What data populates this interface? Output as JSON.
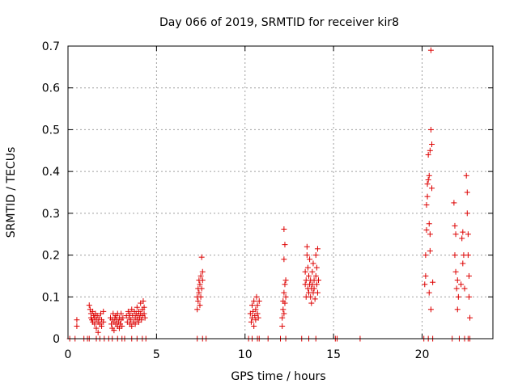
{
  "chart_data": {
    "type": "scatter",
    "title": "Day 066 of 2019, SRMTID for receiver kir8",
    "xlabel": "GPS time / hours",
    "ylabel": "SRMTID / TECUs",
    "xlim": [
      0,
      24
    ],
    "ylim": [
      0,
      0.7
    ],
    "xticks": [
      0,
      5,
      10,
      15,
      20
    ],
    "yticks": [
      0,
      0.1,
      0.2,
      0.3,
      0.4,
      0.5,
      0.6,
      0.7
    ],
    "grid": true,
    "marker": "+",
    "color": "#dd0000",
    "series": [
      {
        "name": "SRMTID",
        "points": [
          [
            0.1,
            0.0
          ],
          [
            0.4,
            0.0
          ],
          [
            0.5,
            0.03
          ],
          [
            0.5,
            0.045
          ],
          [
            0.9,
            0.0
          ],
          [
            1.1,
            0.0
          ],
          [
            1.2,
            0.0
          ],
          [
            1.2,
            0.08
          ],
          [
            1.25,
            0.07
          ],
          [
            1.3,
            0.06
          ],
          [
            1.3,
            0.05
          ],
          [
            1.35,
            0.045
          ],
          [
            1.4,
            0.04
          ],
          [
            1.4,
            0.065
          ],
          [
            1.45,
            0.055
          ],
          [
            1.5,
            0.05
          ],
          [
            1.5,
            0.035
          ],
          [
            1.55,
            0.06
          ],
          [
            1.6,
            0.045
          ],
          [
            1.6,
            0.025
          ],
          [
            1.65,
            0.055
          ],
          [
            1.7,
            0.04
          ],
          [
            1.7,
            0.015
          ],
          [
            1.75,
            0.05
          ],
          [
            1.8,
            0.035
          ],
          [
            1.85,
            0.06
          ],
          [
            1.9,
            0.045
          ],
          [
            1.9,
            0.03
          ],
          [
            2.0,
            0.065
          ],
          [
            2.0,
            0.04
          ],
          [
            1.6,
            0.0
          ],
          [
            1.8,
            0.0
          ],
          [
            2.05,
            0.0
          ],
          [
            2.3,
            0.0
          ],
          [
            2.4,
            0.05
          ],
          [
            2.45,
            0.035
          ],
          [
            2.5,
            0.045
          ],
          [
            2.5,
            0.025
          ],
          [
            2.55,
            0.06
          ],
          [
            2.6,
            0.04
          ],
          [
            2.6,
            0.02
          ],
          [
            2.65,
            0.05
          ],
          [
            2.7,
            0.035
          ],
          [
            2.7,
            0.055
          ],
          [
            2.75,
            0.045
          ],
          [
            2.8,
            0.03
          ],
          [
            2.8,
            0.06
          ],
          [
            2.85,
            0.04
          ],
          [
            2.9,
            0.05
          ],
          [
            2.9,
            0.025
          ],
          [
            2.95,
            0.035
          ],
          [
            3.0,
            0.045
          ],
          [
            3.0,
            0.06
          ],
          [
            3.05,
            0.03
          ],
          [
            3.1,
            0.05
          ],
          [
            2.5,
            0.0
          ],
          [
            2.8,
            0.0
          ],
          [
            3.05,
            0.0
          ],
          [
            3.2,
            0.0
          ],
          [
            3.3,
            0.055
          ],
          [
            3.35,
            0.04
          ],
          [
            3.4,
            0.065
          ],
          [
            3.45,
            0.05
          ],
          [
            3.5,
            0.035
          ],
          [
            3.5,
            0.06
          ],
          [
            3.55,
            0.045
          ],
          [
            3.6,
            0.07
          ],
          [
            3.6,
            0.03
          ],
          [
            3.65,
            0.055
          ],
          [
            3.7,
            0.04
          ],
          [
            3.75,
            0.065
          ],
          [
            3.8,
            0.05
          ],
          [
            3.8,
            0.035
          ],
          [
            3.85,
            0.06
          ],
          [
            3.9,
            0.045
          ],
          [
            3.9,
            0.075
          ],
          [
            3.95,
            0.055
          ],
          [
            4.0,
            0.04
          ],
          [
            4.0,
            0.065
          ],
          [
            4.05,
            0.05
          ],
          [
            4.1,
            0.085
          ],
          [
            4.1,
            0.06
          ],
          [
            4.15,
            0.045
          ],
          [
            4.2,
            0.07
          ],
          [
            4.2,
            0.055
          ],
          [
            4.25,
            0.09
          ],
          [
            4.3,
            0.06
          ],
          [
            4.3,
            0.075
          ],
          [
            4.35,
            0.05
          ],
          [
            3.6,
            0.0
          ],
          [
            3.9,
            0.0
          ],
          [
            4.2,
            0.0
          ],
          [
            4.4,
            0.0
          ],
          [
            7.3,
            0.07
          ],
          [
            7.3,
            0.1
          ],
          [
            7.35,
            0.12
          ],
          [
            7.35,
            0.09
          ],
          [
            7.4,
            0.14
          ],
          [
            7.4,
            0.11
          ],
          [
            7.45,
            0.08
          ],
          [
            7.45,
            0.13
          ],
          [
            7.5,
            0.15
          ],
          [
            7.5,
            0.1
          ],
          [
            7.55,
            0.12
          ],
          [
            7.55,
            0.195
          ],
          [
            7.6,
            0.16
          ],
          [
            7.6,
            0.14
          ],
          [
            7.3,
            0.0
          ],
          [
            7.6,
            0.0
          ],
          [
            7.8,
            0.0
          ],
          [
            10.2,
            0.0
          ],
          [
            10.3,
            0.06
          ],
          [
            10.35,
            0.04
          ],
          [
            10.4,
            0.08
          ],
          [
            10.4,
            0.05
          ],
          [
            10.45,
            0.065
          ],
          [
            10.5,
            0.03
          ],
          [
            10.5,
            0.09
          ],
          [
            10.55,
            0.055
          ],
          [
            10.6,
            0.07
          ],
          [
            10.6,
            0.045
          ],
          [
            10.65,
            0.1
          ],
          [
            10.7,
            0.06
          ],
          [
            10.7,
            0.08
          ],
          [
            10.75,
            0.05
          ],
          [
            10.8,
            0.09
          ],
          [
            10.4,
            0.0
          ],
          [
            10.7,
            0.0
          ],
          [
            10.8,
            0.0
          ],
          [
            11.3,
            0.0
          ],
          [
            12.0,
            0.0
          ],
          [
            12.1,
            0.03
          ],
          [
            12.1,
            0.05
          ],
          [
            12.15,
            0.09
          ],
          [
            12.15,
            0.07
          ],
          [
            12.2,
            0.11
          ],
          [
            12.2,
            0.06
          ],
          [
            12.25,
            0.13
          ],
          [
            12.25,
            0.085
          ],
          [
            12.2,
            0.19
          ],
          [
            12.25,
            0.225
          ],
          [
            12.2,
            0.262
          ],
          [
            12.3,
            0.14
          ],
          [
            12.3,
            0.1
          ],
          [
            12.3,
            0.0
          ],
          [
            13.2,
            0.0
          ],
          [
            13.4,
            0.13
          ],
          [
            13.4,
            0.16
          ],
          [
            13.45,
            0.1
          ],
          [
            13.45,
            0.14
          ],
          [
            13.5,
            0.2
          ],
          [
            13.5,
            0.22
          ],
          [
            13.55,
            0.12
          ],
          [
            13.55,
            0.17
          ],
          [
            13.6,
            0.15
          ],
          [
            13.6,
            0.11
          ],
          [
            13.65,
            0.13
          ],
          [
            13.65,
            0.19
          ],
          [
            13.7,
            0.1
          ],
          [
            13.7,
            0.14
          ],
          [
            13.75,
            0.12
          ],
          [
            13.75,
            0.085
          ],
          [
            13.8,
            0.16
          ],
          [
            13.8,
            0.13
          ],
          [
            13.85,
            0.11
          ],
          [
            13.85,
            0.18
          ],
          [
            13.9,
            0.14
          ],
          [
            13.9,
            0.12
          ],
          [
            13.95,
            0.095
          ],
          [
            14.0,
            0.15
          ],
          [
            14.0,
            0.2
          ],
          [
            14.05,
            0.13
          ],
          [
            14.05,
            0.17
          ],
          [
            14.1,
            0.11
          ],
          [
            14.1,
            0.215
          ],
          [
            14.15,
            0.14
          ],
          [
            13.6,
            0.0
          ],
          [
            14.0,
            0.0
          ],
          [
            15.1,
            0.0
          ],
          [
            15.2,
            0.0
          ],
          [
            16.5,
            0.0
          ],
          [
            20.1,
            0.0
          ],
          [
            20.15,
            0.13
          ],
          [
            20.2,
            0.2
          ],
          [
            20.2,
            0.15
          ],
          [
            20.25,
            0.26
          ],
          [
            20.25,
            0.32
          ],
          [
            20.3,
            0.37
          ],
          [
            20.3,
            0.34
          ],
          [
            20.35,
            0.44
          ],
          [
            20.35,
            0.38
          ],
          [
            20.4,
            0.39
          ],
          [
            20.4,
            0.275
          ],
          [
            20.45,
            0.25
          ],
          [
            20.45,
            0.21
          ],
          [
            20.45,
            0.45
          ],
          [
            20.5,
            0.69
          ],
          [
            20.5,
            0.5
          ],
          [
            20.55,
            0.465
          ],
          [
            20.55,
            0.36
          ],
          [
            20.6,
            0.135
          ],
          [
            20.5,
            0.07
          ],
          [
            20.4,
            0.11
          ],
          [
            20.35,
            0.0
          ],
          [
            20.6,
            0.0
          ],
          [
            21.7,
            0.0
          ],
          [
            21.8,
            0.325
          ],
          [
            21.85,
            0.27
          ],
          [
            21.85,
            0.2
          ],
          [
            21.9,
            0.25
          ],
          [
            21.9,
            0.16
          ],
          [
            21.95,
            0.12
          ],
          [
            22.0,
            0.14
          ],
          [
            22.0,
            0.07
          ],
          [
            22.05,
            0.1
          ],
          [
            22.1,
            0.0
          ],
          [
            22.2,
            0.13
          ],
          [
            22.25,
            0.24
          ],
          [
            22.3,
            0.18
          ],
          [
            22.3,
            0.255
          ],
          [
            22.35,
            0.2
          ],
          [
            22.4,
            0.12
          ],
          [
            22.4,
            0.0
          ],
          [
            22.5,
            0.39
          ],
          [
            22.55,
            0.35
          ],
          [
            22.55,
            0.3
          ],
          [
            22.6,
            0.25
          ],
          [
            22.6,
            0.2
          ],
          [
            22.65,
            0.15
          ],
          [
            22.65,
            0.1
          ],
          [
            22.7,
            0.05
          ],
          [
            22.7,
            0.0
          ],
          [
            22.6,
            0.0
          ]
        ]
      }
    ]
  }
}
